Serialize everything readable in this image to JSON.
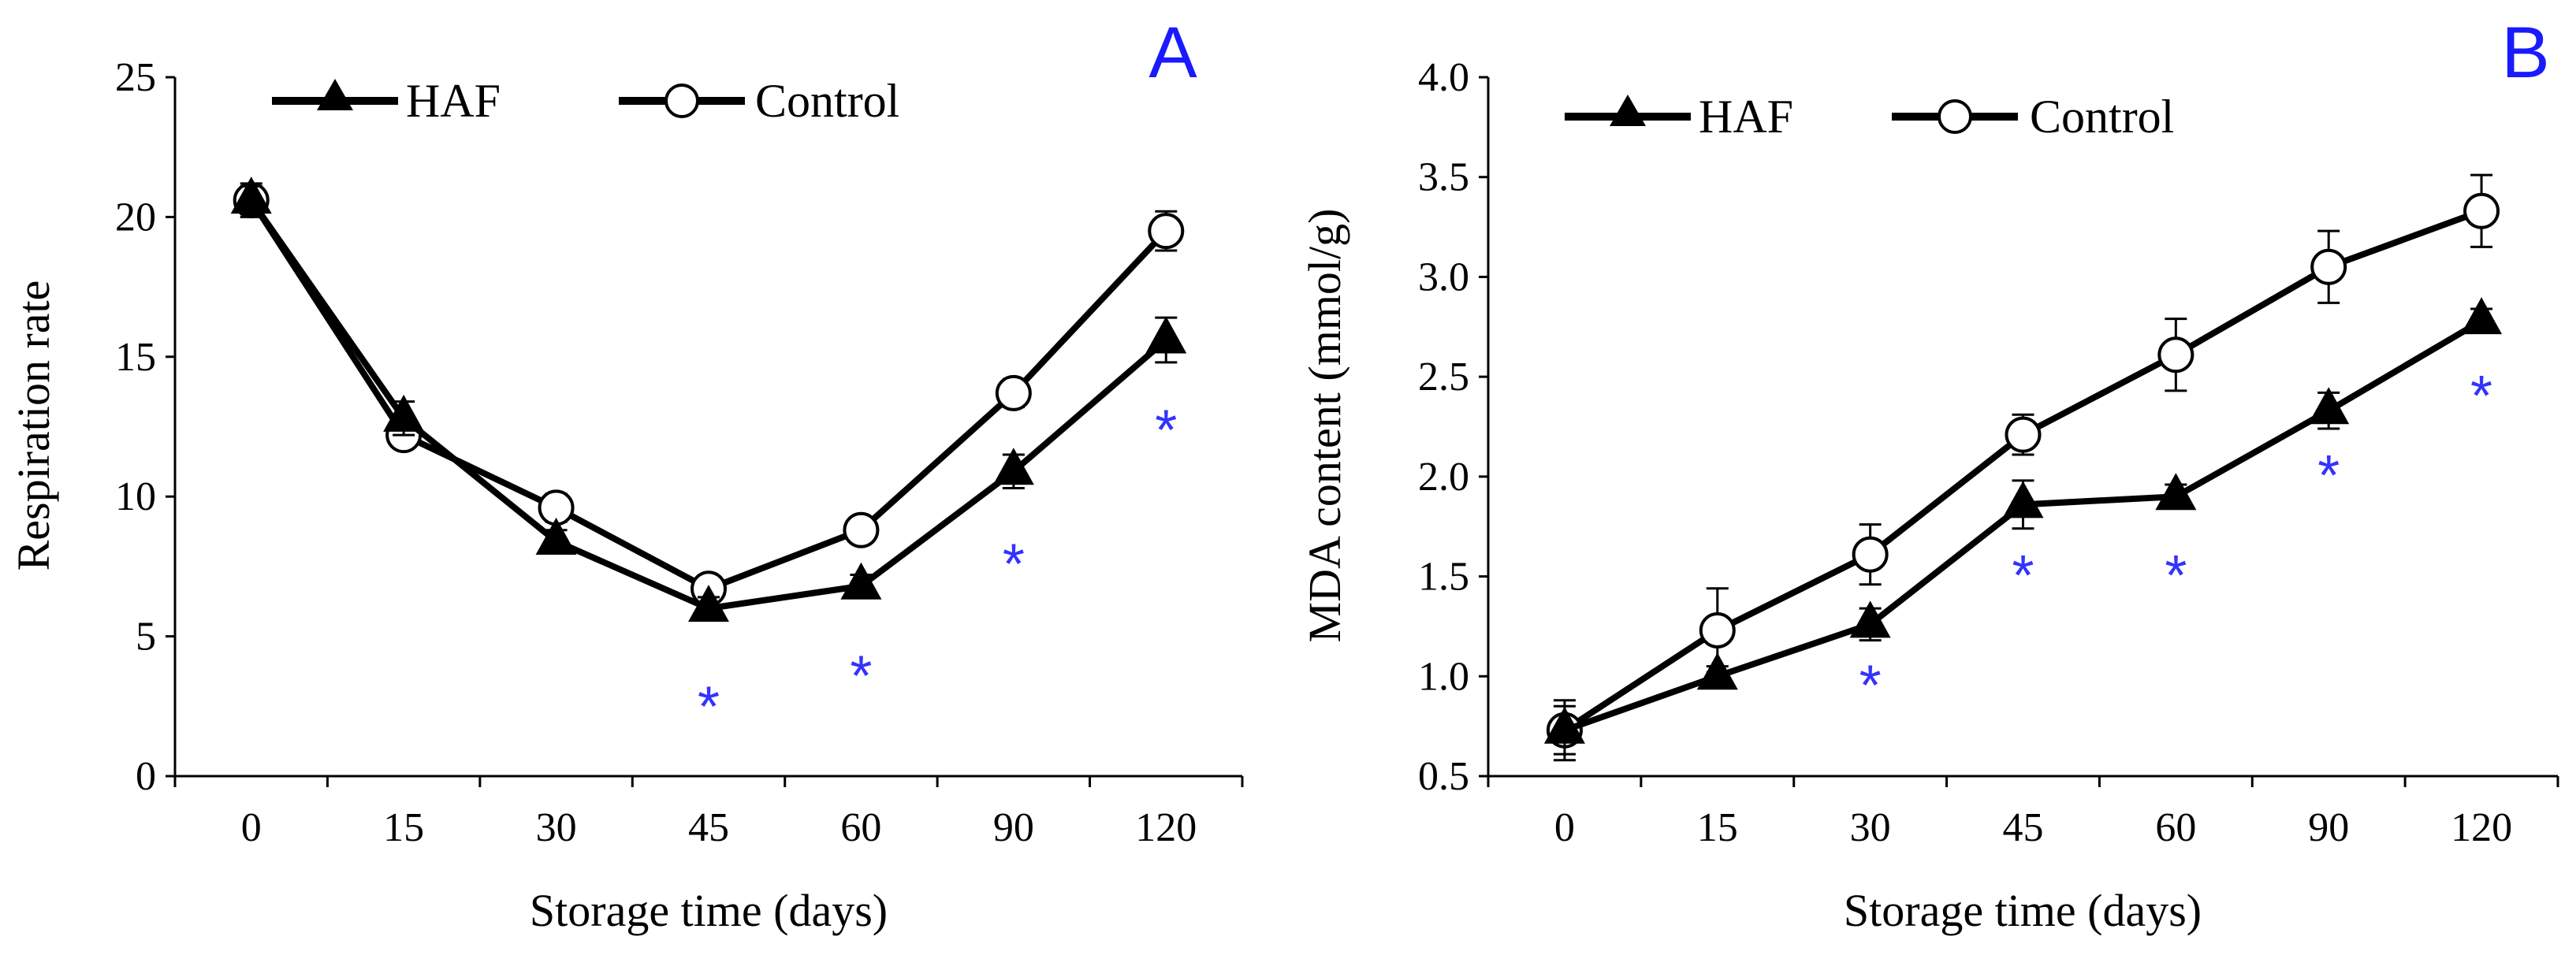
{
  "colors": {
    "line": "#000000",
    "star": "#3333ff",
    "panel_label": "#1a1aff"
  },
  "chart_data": [
    {
      "type": "line",
      "panel": "A",
      "title": "",
      "xlabel": "Storage time (days)",
      "ylabel": "Respiration rate",
      "categories": [
        "0",
        "15",
        "30",
        "45",
        "60",
        "90",
        "120"
      ],
      "ylim": [
        0,
        25
      ],
      "yticks": [
        "0",
        "5",
        "10",
        "15",
        "20",
        "25"
      ],
      "legend_position": "top-left",
      "series": [
        {
          "name": "HAF",
          "marker": "filled-triangle",
          "values": [
            20.6,
            12.8,
            8.4,
            6.0,
            6.8,
            10.9,
            15.6
          ],
          "errors": [
            0.5,
            0.6,
            0.4,
            0.4,
            0.4,
            0.6,
            0.8
          ]
        },
        {
          "name": "Control",
          "marker": "open-circle",
          "values": [
            20.6,
            12.2,
            9.6,
            6.7,
            8.8,
            13.7,
            19.5
          ],
          "errors": [
            0.6,
            0.4,
            0.5,
            0.3,
            0.4,
            0.5,
            0.7
          ]
        }
      ],
      "significance": {
        "symbol": "*",
        "indices": [
          3,
          4,
          5,
          6
        ],
        "values": [
          2.8,
          3.9,
          7.9,
          12.7
        ]
      }
    },
    {
      "type": "line",
      "panel": "B",
      "title": "",
      "xlabel": "Storage time (days)",
      "ylabel": "MDA content (mmol/g)",
      "categories": [
        "0",
        "15",
        "30",
        "45",
        "60",
        "90",
        "120"
      ],
      "ylim": [
        0.5,
        4.0
      ],
      "yticks": [
        "0.5",
        "1.0",
        "1.5",
        "2.0",
        "2.5",
        "3.0",
        "3.5",
        "4.0"
      ],
      "legend_position": "top-left",
      "series": [
        {
          "name": "HAF",
          "marker": "filled-triangle",
          "values": [
            0.73,
            1.0,
            1.26,
            1.86,
            1.9,
            2.33,
            2.78
          ],
          "errors": [
            0.12,
            0.05,
            0.08,
            0.12,
            0.06,
            0.09,
            0.06
          ]
        },
        {
          "name": "Control",
          "marker": "open-circle",
          "values": [
            0.73,
            1.23,
            1.61,
            2.21,
            2.61,
            3.05,
            3.33
          ],
          "errors": [
            0.15,
            0.21,
            0.15,
            0.1,
            0.18,
            0.18,
            0.18
          ]
        }
      ],
      "significance": {
        "symbol": "*",
        "indices": [
          2,
          3,
          4,
          5,
          6
        ],
        "values": [
          1.0,
          1.55,
          1.55,
          2.05,
          2.45
        ]
      }
    }
  ]
}
